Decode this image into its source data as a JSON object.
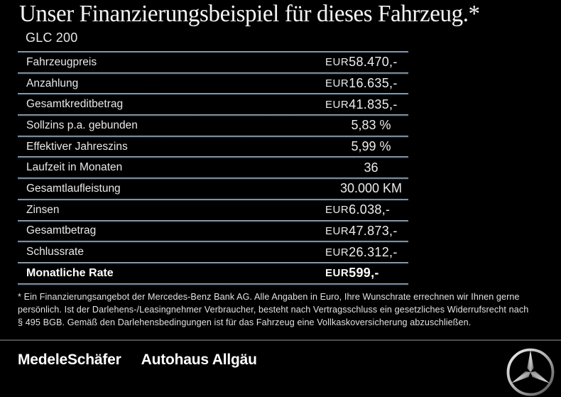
{
  "header": {
    "title": "Unser Finanzierungsbeispiel für dieses Fahrzeug.*",
    "model": "GLC 200"
  },
  "table": {
    "rows": [
      {
        "label": "Fahrzeugpreis",
        "currency": "EUR",
        "value": "58.470,-",
        "emphasis": false
      },
      {
        "label": "Anzahlung",
        "currency": "EUR",
        "value": "16.635,-",
        "emphasis": false
      },
      {
        "label": "Gesamtkreditbetrag",
        "currency": "EUR",
        "value": "41.835,-",
        "emphasis": false
      },
      {
        "label": "Sollzins p.a. gebunden",
        "currency": "",
        "value": "5,83 %",
        "emphasis": false
      },
      {
        "label": "Effektiver Jahreszins",
        "currency": "",
        "value": "5,99 %",
        "emphasis": false
      },
      {
        "label": "Laufzeit in Monaten",
        "currency": "",
        "value": "36",
        "emphasis": false
      },
      {
        "label": "Gesamtlaufleistung",
        "currency": "",
        "value": "30.000 KM",
        "emphasis": false
      },
      {
        "label": "Zinsen",
        "currency": "EUR",
        "value": "6.038,-",
        "emphasis": false
      },
      {
        "label": "Gesamtbetrag",
        "currency": "EUR",
        "value": "47.873,-",
        "emphasis": false
      },
      {
        "label": "Schlussrate",
        "currency": "EUR",
        "value": "26.312,-",
        "emphasis": false
      },
      {
        "label": "Monatliche Rate",
        "currency": "EUR",
        "value": "599,-",
        "emphasis": true
      }
    ]
  },
  "footnote": {
    "text": "* Ein Finanzierungsangebot der Mercedes-Benz Bank AG. Alle Angaben in Euro, Ihre Wunschrate errechnen wir Ihnen gerne\npersönlich. Ist der Darlehens-/Leasingnehmer Verbraucher, besteht nach Vertragsschluss ein gesetzliches Widerrufsrecht nach\n§ 495 BGB. Gemäß den Darlehensbedingungen ist für das Fahrzeug eine Vollkaskoversicherung abzuschließen."
  },
  "footer": {
    "dealer_primary": "MedeleSchäfer",
    "dealer_secondary": "Autohaus Allgäu",
    "brand_icon": "mercedes-star-icon"
  },
  "colors": {
    "background": "#000000",
    "text": "#e9e9e9",
    "divider_light": "#c3ced7",
    "divider_dark": "#22374a",
    "footer_divider": "#4d4d4d"
  }
}
